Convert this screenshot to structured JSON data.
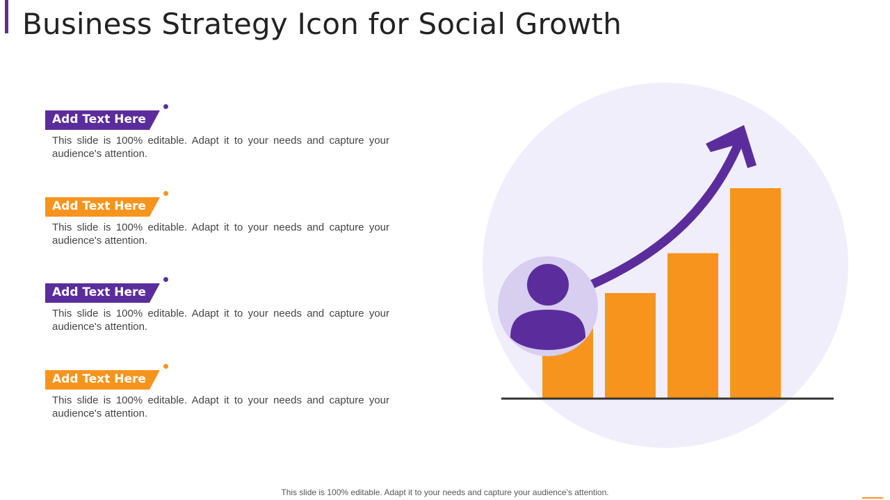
{
  "slide": {
    "title": "Business Strategy Icon for Social Growth",
    "footer": "This slide is 100% editable. Adapt it to your needs and capture your audience's attention."
  },
  "colors": {
    "purple": "#5b2d9c",
    "orange": "#f7941d",
    "circle_bg": "#f1eefb",
    "avatar_bg": "#d8cef0",
    "axis": "#333333",
    "text": "#444444"
  },
  "items": [
    {
      "label": "Add Text Here",
      "text": "This slide is 100% editable. Adapt it to your needs and capture your audience's attention.",
      "color": "purple"
    },
    {
      "label": "Add Text Here",
      "text": "This slide is 100% editable. Adapt it to your needs and capture your audience's attention.",
      "color": "orange"
    },
    {
      "label": "Add Text Here",
      "text": "This slide is 100% editable. Adapt it to your needs and capture your audience's attention.",
      "color": "purple"
    },
    {
      "label": "Add Text Here",
      "text": "This slide is 100% editable. Adapt it to your needs and capture your audience's attention.",
      "color": "orange"
    }
  ],
  "graphic": {
    "icons": [
      "growth-arrow-icon",
      "user-icon",
      "bar-chart-icon"
    ],
    "bar_levels": [
      0.33,
      0.5,
      0.69,
      1.0
    ]
  }
}
